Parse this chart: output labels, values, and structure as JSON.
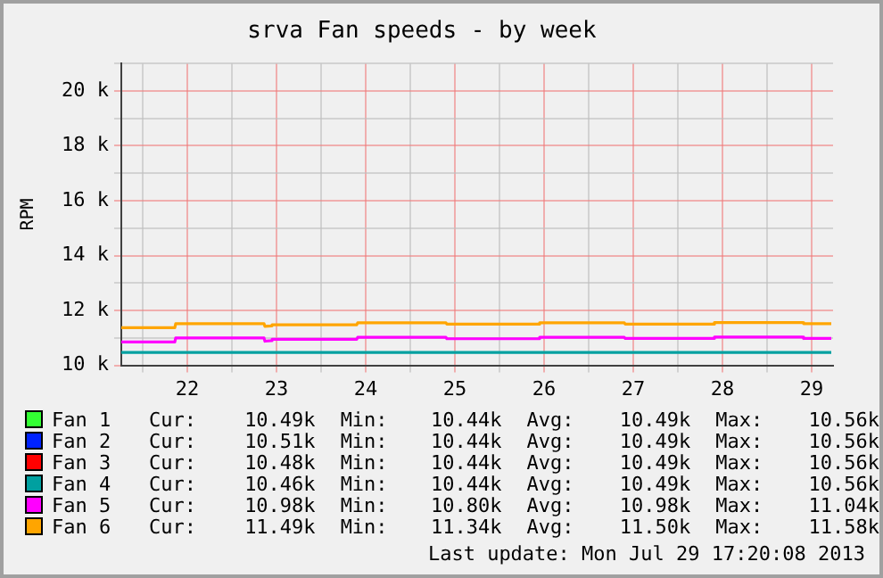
{
  "chart_data": {
    "type": "line",
    "title": "srva Fan speeds - by week",
    "ylabel": "RPM",
    "xlim": [
      21.76,
      29.74
    ],
    "xticks": [
      {
        "value": 22,
        "label": null
      },
      {
        "value": 22.5,
        "label": "22"
      },
      {
        "value": 23,
        "label": null
      },
      {
        "value": 23.5,
        "label": "23"
      },
      {
        "value": 24,
        "label": null
      },
      {
        "value": 24.5,
        "label": "24"
      },
      {
        "value": 25,
        "label": null
      },
      {
        "value": 25.5,
        "label": "25"
      },
      {
        "value": 26,
        "label": null
      },
      {
        "value": 26.5,
        "label": "26"
      },
      {
        "value": 27,
        "label": null
      },
      {
        "value": 27.5,
        "label": "27"
      },
      {
        "value": 28,
        "label": null
      },
      {
        "value": 28.5,
        "label": "28"
      },
      {
        "value": 29,
        "label": null
      },
      {
        "value": 29.5,
        "label": "29"
      }
    ],
    "ylim": [
      10000,
      21000
    ],
    "yticks": [
      {
        "value": 10000,
        "label": "10 k"
      },
      {
        "value": 11000,
        "label": null
      },
      {
        "value": 12000,
        "label": "12 k"
      },
      {
        "value": 13000,
        "label": null
      },
      {
        "value": 14000,
        "label": "14 k"
      },
      {
        "value": 15000,
        "label": null
      },
      {
        "value": 16000,
        "label": "16 k"
      },
      {
        "value": 17000,
        "label": null
      },
      {
        "value": 18000,
        "label": "18 k"
      },
      {
        "value": 19000,
        "label": null
      },
      {
        "value": 20000,
        "label": "20 k"
      },
      {
        "value": 21000,
        "label": null
      }
    ],
    "grid": true,
    "legend": "bottom",
    "marker": "none",
    "line_style": "solid",
    "series": [
      {
        "name": "Fan 1",
        "color": "#33ff33"
      },
      {
        "name": "Fan 2",
        "color": "#0022ff"
      },
      {
        "name": "Fan 3",
        "color": "#ff0000"
      },
      {
        "name": "Fan 4",
        "color": "#00a0a0",
        "x": [
          21.76,
          29.72
        ],
        "values": [
          10470,
          10470
        ]
      },
      {
        "name": "Fan 5",
        "color": "#ff00ff",
        "x": [
          21.76,
          22.36,
          22.37,
          23.36,
          23.37,
          23.44,
          23.45,
          24.4,
          24.41,
          25.4,
          25.41,
          26.44,
          26.45,
          27.4,
          27.41,
          28.4,
          28.41,
          29.4,
          29.41,
          29.72
        ],
        "values": [
          10850,
          10850,
          11000,
          11000,
          10880,
          10900,
          10950,
          10950,
          11020,
          11020,
          10970,
          10970,
          11020,
          11020,
          10980,
          10980,
          11030,
          11030,
          10980,
          10980
        ]
      },
      {
        "name": "Fan 6",
        "color": "#ffa500",
        "x": [
          21.76,
          22.36,
          22.37,
          23.36,
          23.37,
          23.44,
          23.45,
          24.4,
          24.41,
          25.4,
          25.41,
          26.44,
          26.45,
          27.4,
          27.41,
          28.4,
          28.41,
          29.4,
          29.41,
          29.72
        ],
        "values": [
          11370,
          11370,
          11520,
          11520,
          11420,
          11440,
          11480,
          11480,
          11550,
          11550,
          11500,
          11500,
          11550,
          11550,
          11500,
          11500,
          11560,
          11560,
          11520,
          11520
        ]
      }
    ],
    "annotations": [
      "Cur: 10.49k Min: 10.44k Avg: 10.49k Max: 10.56k",
      "Cur: 10.51k Min: 10.44k Avg: 10.49k Max: 10.56k",
      "Cur: 10.48k Min: 10.44k Avg: 10.49k Max: 10.56k",
      "Cur: 10.46k Min: 10.44k Avg: 10.49k Max: 10.56k",
      "Cur: 10.98k Min: 10.80k Avg: 10.98k Max: 11.04k",
      "Cur: 11.49k Min: 11.34k Avg: 11.50k Max: 11.58k",
      "Last update: Mon Jul 29 17:20:08 2013"
    ]
  }
}
